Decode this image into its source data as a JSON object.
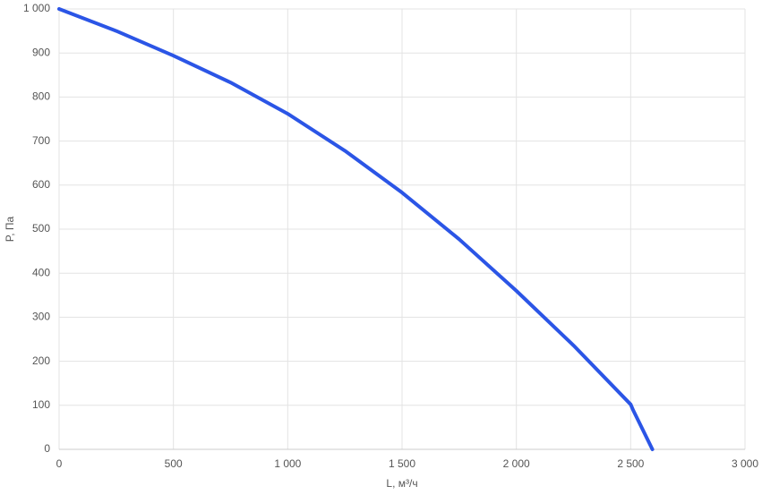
{
  "chart_data": {
    "type": "line",
    "x_label": "L, м³/ч",
    "y_label": "P, Па",
    "x": [
      0,
      250,
      500,
      750,
      1000,
      1250,
      1500,
      1750,
      2000,
      2250,
      2500,
      2510,
      2595
    ],
    "series": [
      {
        "name": "P",
        "color": "#2b55e6",
        "values": [
          1000,
          950,
          894,
          833,
          762,
          678,
          583,
          477,
          360,
          236,
          102,
          90,
          0
        ]
      }
    ],
    "xlim": [
      0,
      3000
    ],
    "xticks": [
      0,
      500,
      {
        "value": 1000,
        "label": "1 000"
      },
      {
        "value": 1500,
        "label": "1 500"
      },
      {
        "value": 2000,
        "label": "2 000"
      },
      {
        "value": 2500,
        "label": "2 500"
      },
      {
        "value": 3000,
        "label": "3 000"
      }
    ],
    "ylim": [
      0,
      1000
    ],
    "yticks": [
      0,
      100,
      200,
      300,
      400,
      500,
      600,
      700,
      800,
      900,
      {
        "value": 1000,
        "label": "1 000"
      }
    ],
    "grid": true
  }
}
